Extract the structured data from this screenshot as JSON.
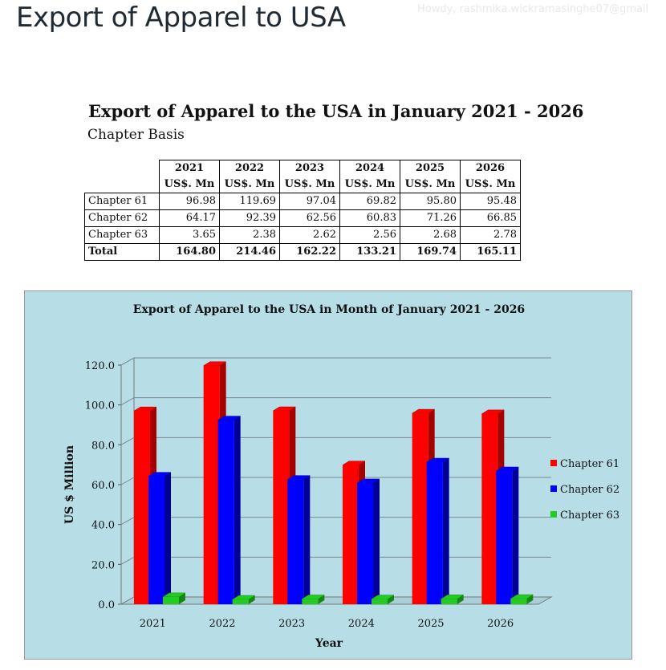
{
  "page": {
    "title": "Export of Apparel to USA",
    "watermark": "Howdy, rashmika.wickramasinghe07@gmail"
  },
  "document": {
    "title": "Export of Apparel to the USA in January 2021 - 2026",
    "subtitle": "Chapter Basis"
  },
  "table": {
    "years": [
      "2021",
      "2022",
      "2023",
      "2024",
      "2025",
      "2026"
    ],
    "unit": "US$. Mn",
    "rows": [
      {
        "label": "Chapter 61",
        "values": [
          "96.98",
          "119.69",
          "97.04",
          "69.82",
          "95.80",
          "95.48"
        ]
      },
      {
        "label": "Chapter 62",
        "values": [
          "64.17",
          "92.39",
          "62.56",
          "60.83",
          "71.26",
          "66.85"
        ]
      },
      {
        "label": "Chapter 63",
        "values": [
          "3.65",
          "2.38",
          "2.62",
          "2.56",
          "2.68",
          "2.78"
        ]
      }
    ],
    "total": {
      "label": "Total",
      "values": [
        "164.80",
        "214.46",
        "162.22",
        "133.21",
        "169.74",
        "165.11"
      ]
    }
  },
  "chart_data": {
    "type": "bar",
    "title": "Export of Apparel to the USA in Month of January 2021 - 2026",
    "xlabel": "Year",
    "ylabel": "US $ Million",
    "ylim": [
      0,
      120
    ],
    "yticks": [
      "0.0",
      "20.0",
      "40.0",
      "60.0",
      "80.0",
      "100.0",
      "120.0"
    ],
    "grid": true,
    "legend_position": "right",
    "categories": [
      "2021",
      "2022",
      "2023",
      "2024",
      "2025",
      "2026"
    ],
    "series": [
      {
        "name": "Chapter 61",
        "color": "#ff0000",
        "shade": "#a40000",
        "values": [
          96.98,
          119.69,
          97.04,
          69.82,
          95.8,
          95.48
        ]
      },
      {
        "name": "Chapter 62",
        "color": "#0000ff",
        "shade": "#000099",
        "values": [
          64.17,
          92.39,
          62.56,
          60.83,
          71.26,
          66.85
        ]
      },
      {
        "name": "Chapter 63",
        "color": "#22cc22",
        "shade": "#118811",
        "values": [
          3.65,
          2.38,
          2.62,
          2.56,
          2.68,
          2.78
        ]
      }
    ]
  }
}
